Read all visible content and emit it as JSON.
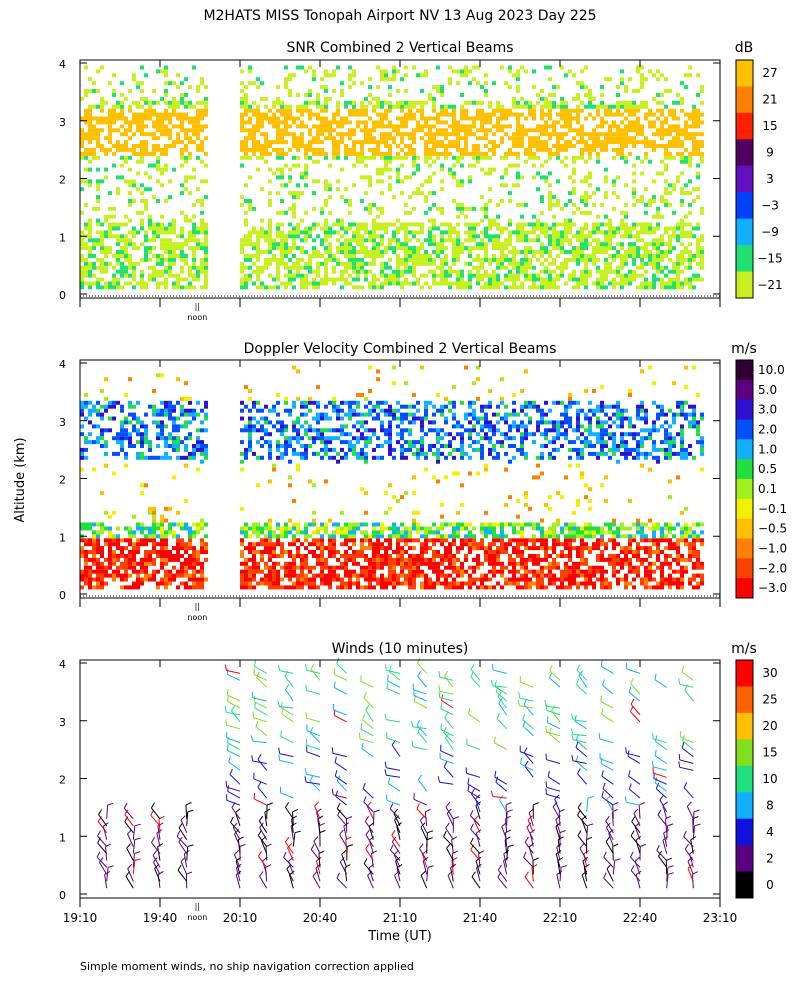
{
  "figure": {
    "title": "M2HATS MISS Tonopah Airport NV  13 Aug 2023 Day 225",
    "ylabel": "Altitude (km)",
    "xlabel": "Time (UT)",
    "footnote": "Simple moment winds, no ship navigation correction applied",
    "noon_label": "noon",
    "noon_marker": "||",
    "time_ticks": [
      "19:10",
      "19:40",
      "20:10",
      "20:40",
      "21:10",
      "21:40",
      "22:10",
      "22:40",
      "23:10"
    ]
  },
  "chart_data": [
    {
      "type": "heatmap",
      "title": "SNR Combined 2 Vertical Beams",
      "colorbar_unit": "dB",
      "colorbar_labels": [
        "27",
        "21",
        "15",
        "9",
        "3",
        "−3",
        "−9",
        "−15",
        "−21"
      ],
      "colorbar_colors": [
        "#ffc000",
        "#ff8000",
        "#ff2000",
        "#500060",
        "#6010c0",
        "#0040ff",
        "#10b0ff",
        "#20e070",
        "#c8f020"
      ],
      "ytick_labels": [
        "0",
        "1",
        "2",
        "3",
        "4"
      ],
      "ylim": [
        0,
        4
      ],
      "x_range": [
        "19:10",
        "23:10"
      ],
      "data_gaps": [
        [
          "19:58",
          "20:10"
        ]
      ],
      "grid": false
    },
    {
      "type": "heatmap",
      "title": "Doppler Velocity Combined 2 Vertical Beams",
      "colorbar_unit": "m/s",
      "colorbar_labels": [
        "10.0",
        "5.0",
        "3.0",
        "2.0",
        "1.0",
        "0.5",
        "0.1",
        "−0.1",
        "−0.5",
        "−1.0",
        "−2.0",
        "−3.0"
      ],
      "colorbar_colors": [
        "#300030",
        "#5a0080",
        "#3010d0",
        "#0050ff",
        "#10b0ff",
        "#20e040",
        "#a0f020",
        "#f0f000",
        "#ffc000",
        "#ff8000",
        "#ff4000",
        "#ff0000"
      ],
      "ytick_labels": [
        "0",
        "1",
        "2",
        "3",
        "4"
      ],
      "ylim": [
        0,
        4
      ],
      "x_range": [
        "19:10",
        "23:10"
      ],
      "data_gaps": [
        [
          "19:58",
          "20:10"
        ]
      ],
      "grid": false
    },
    {
      "type": "wind_barbs",
      "title": "Winds (10 minutes)",
      "colorbar_unit": "m/s",
      "colorbar_labels": [
        "30",
        "25",
        "20",
        "15",
        "10",
        "8",
        "4",
        "2",
        "0"
      ],
      "colorbar_colors": [
        "#ff0000",
        "#ff6000",
        "#ffc000",
        "#80e020",
        "#20e080",
        "#10b0ff",
        "#1010e0",
        "#5a0080",
        "#000000"
      ],
      "ytick_labels": [
        "0",
        "1",
        "2",
        "3",
        "4"
      ],
      "ylim": [
        0,
        4
      ],
      "x_range": [
        "19:10",
        "23:10"
      ],
      "grid": false
    }
  ]
}
